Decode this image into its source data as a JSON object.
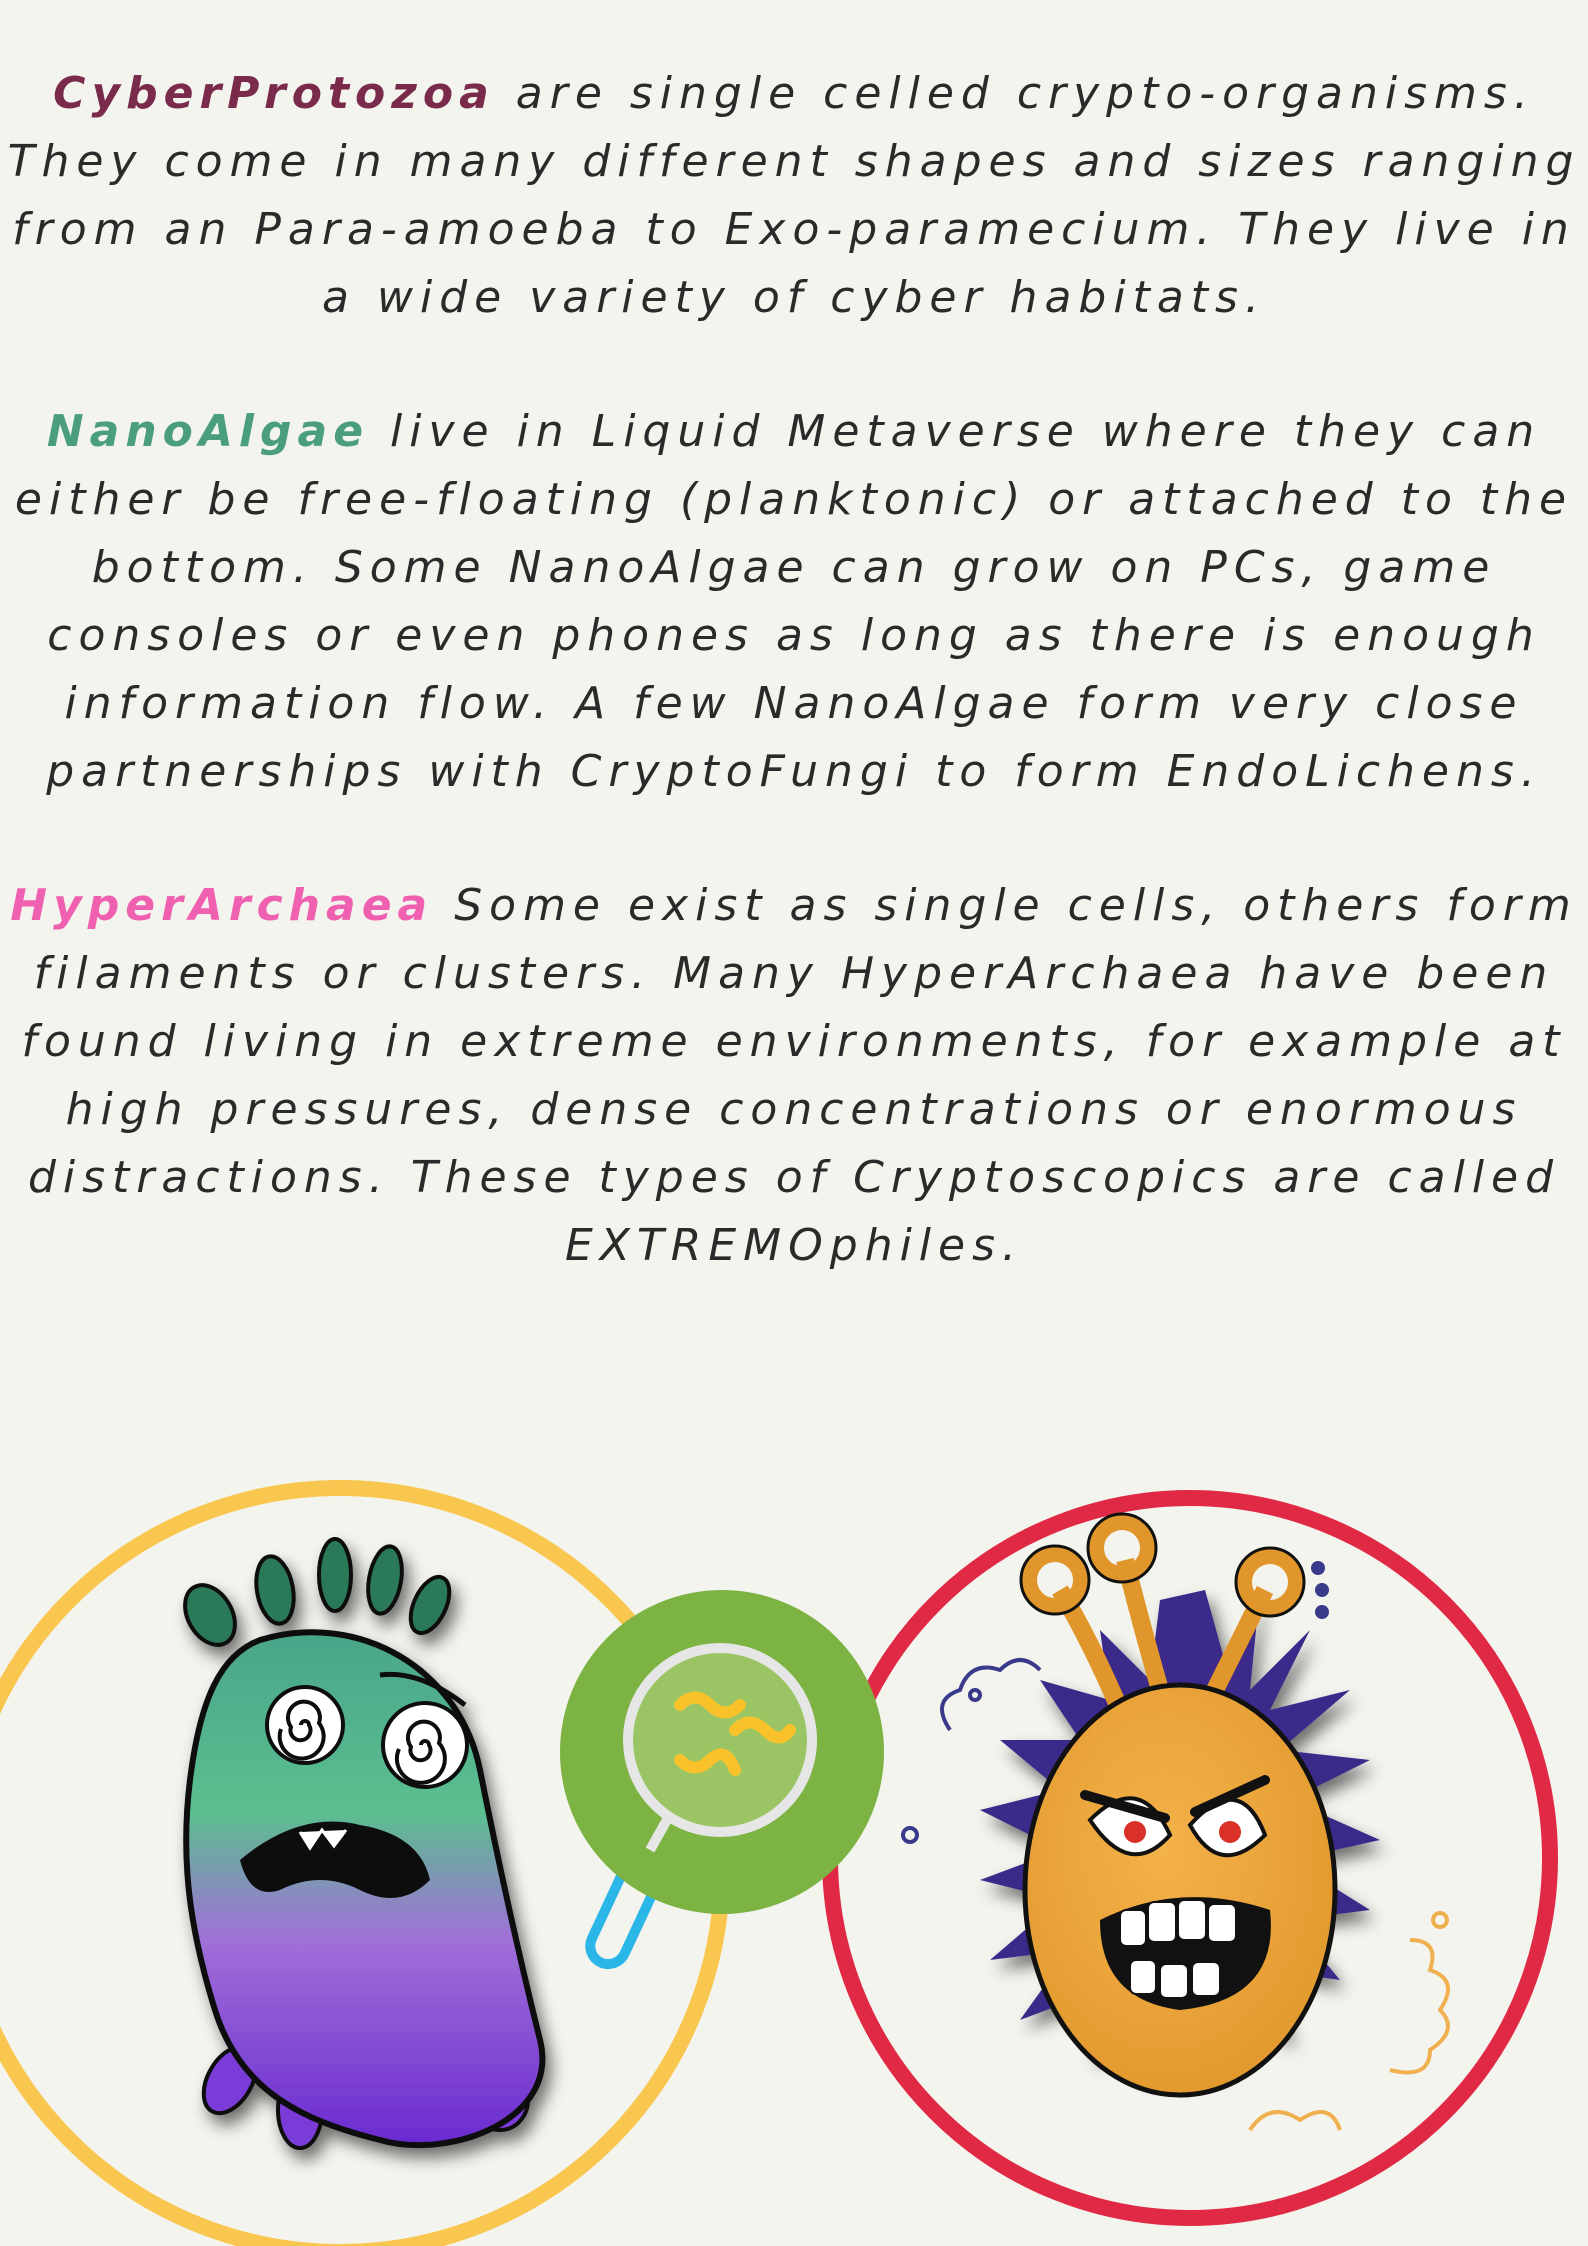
{
  "paragraphs": [
    {
      "term": "CyberProtozoa",
      "text": " are single celled crypto-organisms. They come in many different shapes and sizes ranging from an Para-amoeba to Exo-paramecium. They live in a wide variety of cyber habitats."
    },
    {
      "term": "NanoAlgae",
      "text": " live in Liquid Metaverse where they can either be free-floating (planktonic) or attached to the bottom. Some NanoAlgae can grow on PCs, game consoles or even phones as long as there is enough information flow. A few NanoAlgae form very close partnerships with CryptoFungi to form EndoLichens."
    },
    {
      "term": "HyperArchaea",
      "text": " Some exist as single cells, others form filaments or clusters. Many HyperArchaea have been found living in extreme environments, for example at high pressures, dense concentrations or enormous distractions. These types of Cryptoscopics are called EXTREMOphiles."
    }
  ],
  "colors": {
    "background": "#f4f4ef",
    "cyberprotozoa": "#7a2a4b",
    "nanoalgae": "#4a9e7e",
    "hyperarchaea": "#f060b0",
    "yellow_ring": "#f9c74f",
    "red_ring": "#e02a45",
    "magnifier_green": "#7cb342",
    "magnifier_handle": "#2ab7e8"
  },
  "illustrations": [
    "dizzy-green-purple-microbe-icon",
    "magnifying-glass-icon",
    "angry-orange-microbe-icon"
  ]
}
